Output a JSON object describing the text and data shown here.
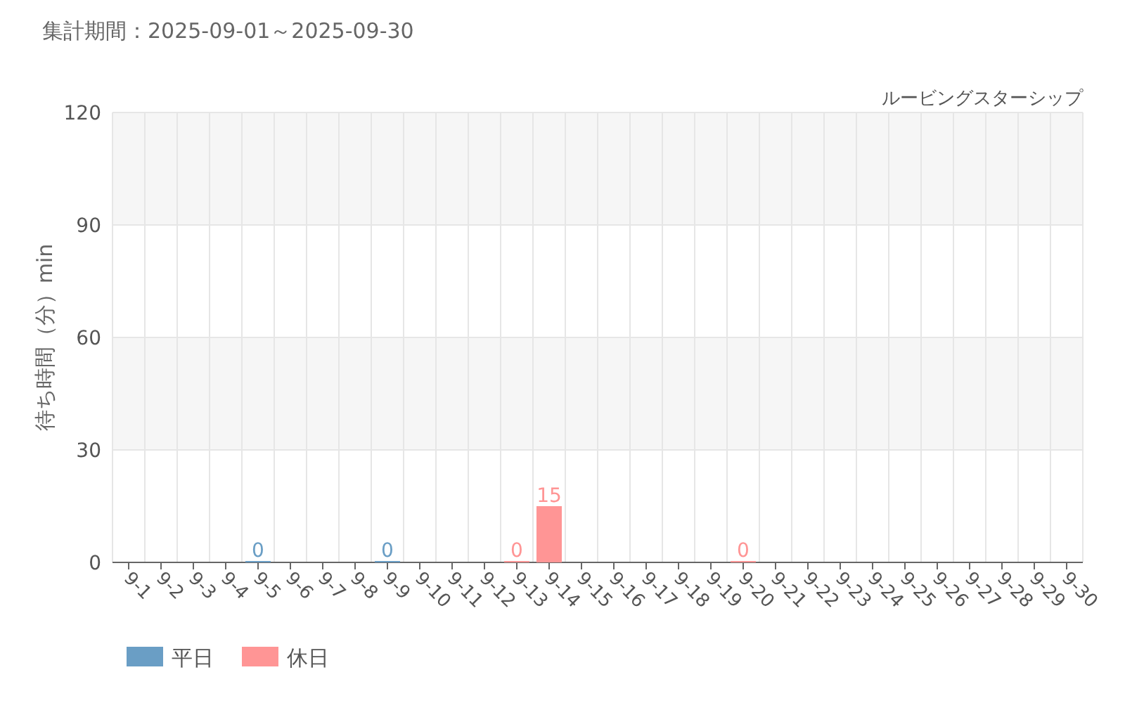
{
  "chart_data": {
    "type": "bar",
    "title": "集計期間：2025-09-01～2025-09-30",
    "subtitle": "ルービングスターシップ",
    "ylabel": "待ち時間（分）min",
    "categories": [
      "9-1",
      "9-2",
      "9-3",
      "9-4",
      "9-5",
      "9-6",
      "9-7",
      "9-8",
      "9-9",
      "9-10",
      "9-11",
      "9-12",
      "9-13",
      "9-14",
      "9-15",
      "9-16",
      "9-17",
      "9-18",
      "9-19",
      "9-20",
      "9-21",
      "9-22",
      "9-23",
      "9-24",
      "9-25",
      "9-26",
      "9-27",
      "9-28",
      "9-29",
      "9-30"
    ],
    "series": [
      {
        "name": "平日",
        "color": "#6a9ec5",
        "values": [
          null,
          null,
          null,
          null,
          0,
          null,
          null,
          null,
          0,
          null,
          null,
          null,
          null,
          null,
          null,
          null,
          null,
          null,
          null,
          null,
          null,
          null,
          null,
          null,
          null,
          null,
          null,
          null,
          null,
          null
        ]
      },
      {
        "name": "休日",
        "color": "#ff9595",
        "values": [
          null,
          null,
          null,
          null,
          null,
          null,
          null,
          null,
          null,
          null,
          null,
          null,
          0,
          15,
          null,
          null,
          null,
          null,
          null,
          0,
          null,
          null,
          null,
          null,
          null,
          null,
          null,
          null,
          null,
          null
        ]
      }
    ],
    "ylim": [
      0,
      120
    ],
    "yticks": [
      0,
      30,
      60,
      90,
      120
    ],
    "grid": true,
    "data_labels": true,
    "legend": "bottom left"
  }
}
